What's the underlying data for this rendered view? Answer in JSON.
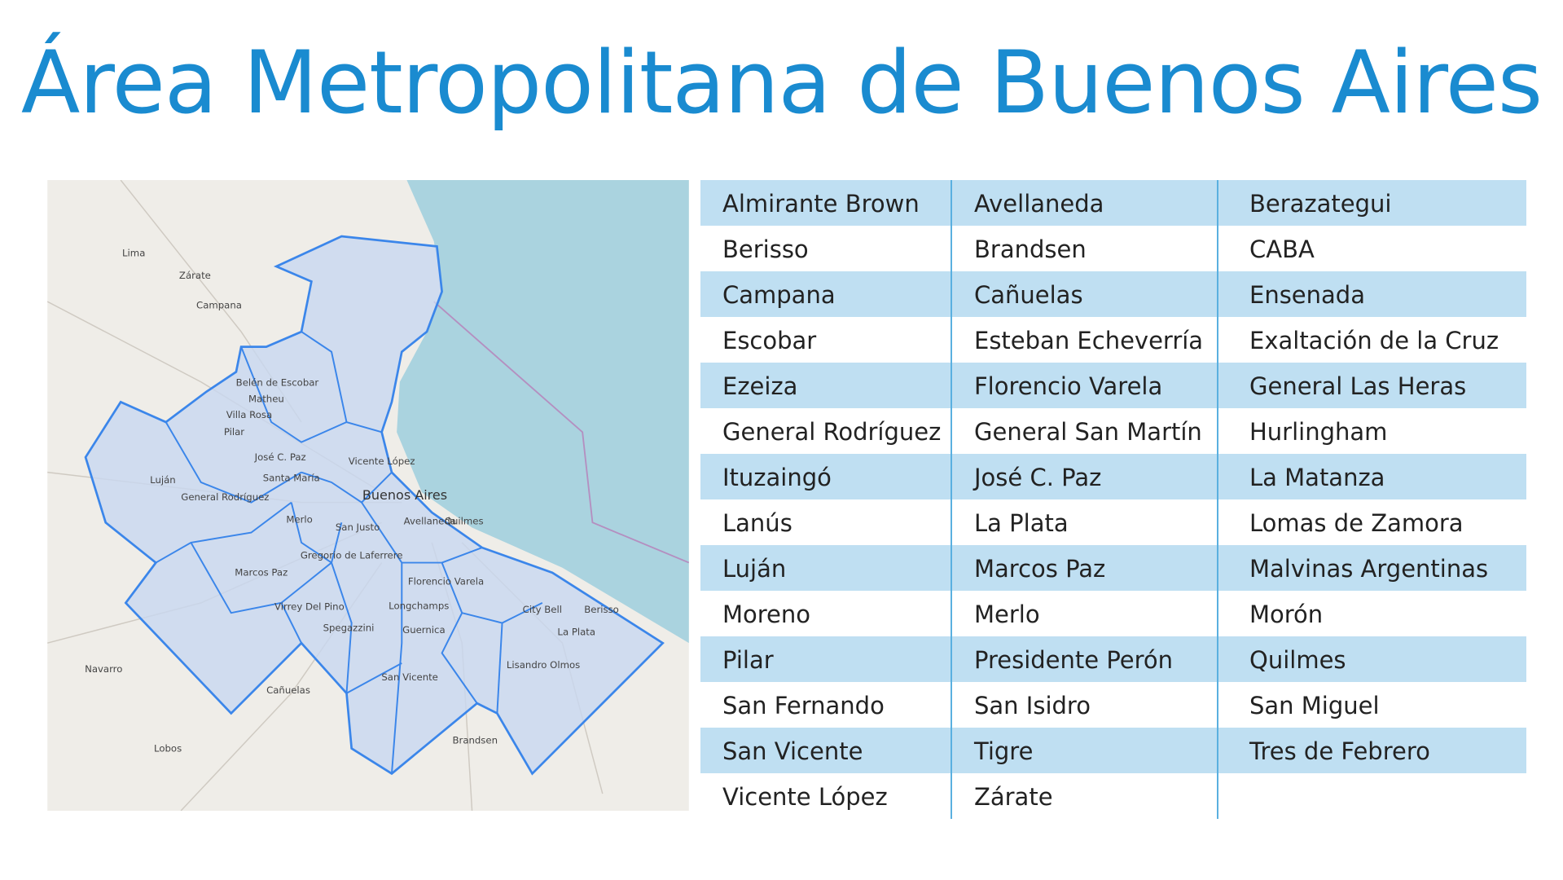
{
  "header": {
    "title": "Área Metropolitana de Buenos Aires"
  },
  "map": {
    "labels": [
      "Lima",
      "Zárate",
      "Campana",
      "Belén de Escobar",
      "Matheu",
      "Villa Rosa",
      "Pilar",
      "José C. Paz",
      "Santa María",
      "Luján",
      "General Rodríguez",
      "Merlo",
      "San Justo",
      "Buenos Aires",
      "Vicente López",
      "Avellaneda",
      "Quilmes",
      "Gregorio de Laferrere",
      "Marcos Paz",
      "Florencio Varela",
      "Virrey Del Pino",
      "Longchamps",
      "Spegazzini",
      "Guernica",
      "City Bell",
      "Berisso",
      "La Plata",
      "Lisandro Olmos",
      "San Vicente",
      "Navarro",
      "Cañuelas",
      "Brandsen",
      "Lobos"
    ]
  },
  "table": {
    "rows": [
      [
        "Almirante Brown",
        "Avellaneda",
        "Berazategui"
      ],
      [
        "Berisso",
        "Brandsen",
        "CABA"
      ],
      [
        "Campana",
        "Cañuelas",
        "Ensenada"
      ],
      [
        "Escobar",
        "Esteban Echeverría",
        "Exaltación de la Cruz"
      ],
      [
        "Ezeiza",
        "Florencio Varela",
        "General Las Heras"
      ],
      [
        "General Rodríguez",
        "General San Martín",
        "Hurlingham"
      ],
      [
        "Ituzaingó",
        "José C. Paz",
        "La Matanza"
      ],
      [
        "Lanús",
        "La Plata",
        "Lomas de Zamora"
      ],
      [
        "Luján",
        "Marcos Paz",
        "Malvinas Argentinas"
      ],
      [
        "Moreno",
        "Merlo",
        "Morón"
      ],
      [
        "Pilar",
        "Presidente Perón",
        "Quilmes"
      ],
      [
        "San Fernando",
        "San Isidro",
        "San Miguel"
      ],
      [
        "San Vicente",
        "Tigre",
        "Tres de Febrero"
      ],
      [
        "Vicente López",
        "Zárate"
      ]
    ]
  }
}
